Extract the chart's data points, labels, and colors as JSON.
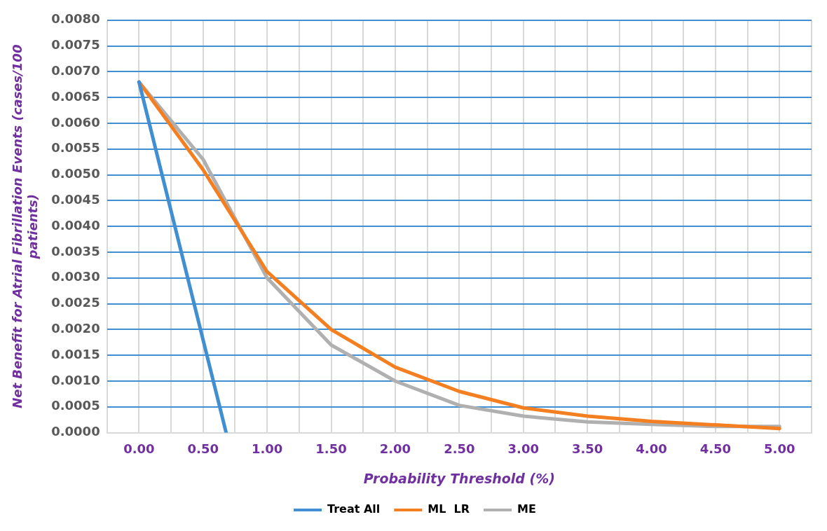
{
  "chart_data": {
    "type": "line",
    "xlabel": "Probability Threshold (%)",
    "ylabel": "Net Benefit for Atrial Fibrillation Events (cases/100 patients)",
    "xlim": [
      -0.25,
      5.25
    ],
    "xticks": [
      {
        "value": -0.25,
        "label": null
      },
      {
        "value": 0,
        "label": "0.00"
      },
      {
        "value": 0.25,
        "label": null
      },
      {
        "value": 0.5,
        "label": "0.50"
      },
      {
        "value": 0.75,
        "label": null
      },
      {
        "value": 1,
        "label": "1.00"
      },
      {
        "value": 1.25,
        "label": null
      },
      {
        "value": 1.5,
        "label": "1.50"
      },
      {
        "value": 1.75,
        "label": null
      },
      {
        "value": 2,
        "label": "2.00"
      },
      {
        "value": 2.25,
        "label": null
      },
      {
        "value": 2.5,
        "label": "2.50"
      },
      {
        "value": 2.75,
        "label": null
      },
      {
        "value": 3,
        "label": "3.00"
      },
      {
        "value": 3.25,
        "label": null
      },
      {
        "value": 3.5,
        "label": "3.50"
      },
      {
        "value": 3.75,
        "label": null
      },
      {
        "value": 4,
        "label": "4.00"
      },
      {
        "value": 4.25,
        "label": null
      },
      {
        "value": 4.5,
        "label": "4.50"
      },
      {
        "value": 4.75,
        "label": null
      },
      {
        "value": 5,
        "label": "5.00"
      },
      {
        "value": 5.25,
        "label": null
      }
    ],
    "ylim": [
      0,
      0.008
    ],
    "yticks": [
      {
        "value": 0,
        "label": "0.0000"
      },
      {
        "value": 0.0005,
        "label": "0.0005"
      },
      {
        "value": 0.001,
        "label": "0.0010"
      },
      {
        "value": 0.0015,
        "label": "0.0015"
      },
      {
        "value": 0.002,
        "label": "0.0020"
      },
      {
        "value": 0.0025,
        "label": "0.0025"
      },
      {
        "value": 0.003,
        "label": "0.0030"
      },
      {
        "value": 0.0035,
        "label": "0.0035"
      },
      {
        "value": 0.004,
        "label": "0.0040"
      },
      {
        "value": 0.0045,
        "label": "0.0045"
      },
      {
        "value": 0.005,
        "label": "0.0050"
      },
      {
        "value": 0.0055,
        "label": "0.0055"
      },
      {
        "value": 0.006,
        "label": "0.0060"
      },
      {
        "value": 0.0065,
        "label": "0.0065"
      },
      {
        "value": 0.007,
        "label": "0.0070"
      },
      {
        "value": 0.0075,
        "label": "0.0075"
      },
      {
        "value": 0.008,
        "label": "0.0080"
      }
    ],
    "x": [
      0,
      0.5,
      1,
      1.5,
      2,
      2.5,
      3,
      3.5,
      4,
      4.5,
      5
    ],
    "series": [
      {
        "name": "Treat All",
        "color": "#3f8fd2",
        "x": [
          0,
          0.68
        ],
        "values": [
          0.0068,
          0
        ]
      },
      {
        "name": "ML  LR",
        "color": "#f47f20",
        "values": [
          0.0068,
          0.0051,
          0.00312,
          0.002,
          0.00127,
          0.0008,
          0.00048,
          0.00032,
          0.00022,
          0.00015,
          8e-05
        ]
      },
      {
        "name": "ME",
        "color": "#b0b0b0",
        "values": [
          0.0068,
          0.0053,
          0.003,
          0.0017,
          0.001,
          0.00053,
          0.00032,
          0.00021,
          0.00016,
          0.00012,
          0.00012
        ]
      }
    ],
    "grid": true,
    "legend": "bottom",
    "marker": "none",
    "line_style": "solid"
  }
}
